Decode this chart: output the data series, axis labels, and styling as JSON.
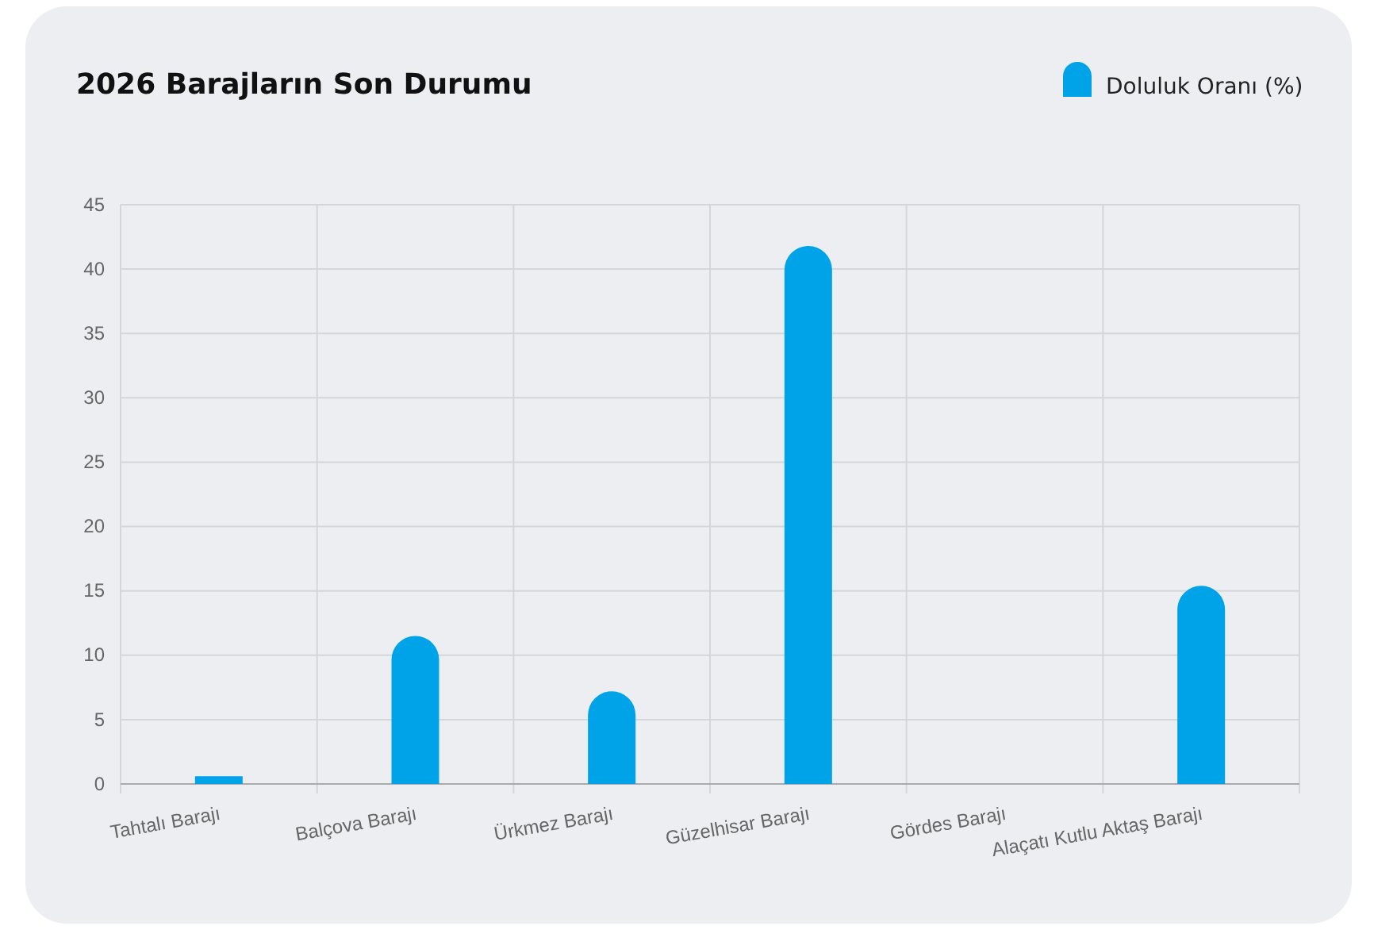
{
  "chart_data": {
    "type": "bar",
    "title": "2026 Barajların Son Durumu",
    "categories": [
      "Tahtalı Barajı",
      "Balçova Barajı",
      "Ürkmez Barajı",
      "Güzelhisar Barajı",
      "Gördes Barajı",
      "Alaçatı Kutlu Aktaş Barajı"
    ],
    "series": [
      {
        "name": "Doluluk Oranı (%)",
        "color": "#00a2e8",
        "values": [
          0.6,
          11.5,
          7.2,
          41.8,
          0,
          15.4
        ]
      }
    ],
    "ylim": [
      0,
      45
    ],
    "yticks": [
      0,
      5,
      10,
      15,
      20,
      25,
      30,
      35,
      40,
      45
    ],
    "grid": true,
    "legend": "top right"
  }
}
